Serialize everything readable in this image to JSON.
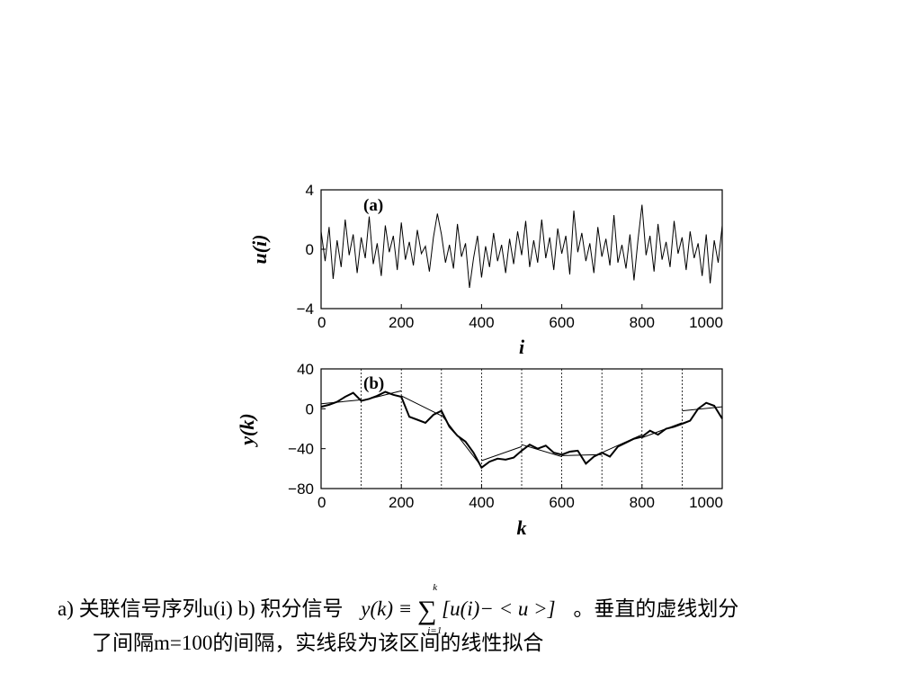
{
  "chart_data": [
    {
      "type": "line",
      "panel_label": "(a)",
      "xlabel": "i",
      "ylabel": "u(i)",
      "xlim": [
        0,
        1000
      ],
      "ylim": [
        -4,
        4
      ],
      "x_ticks": [
        0,
        200,
        400,
        600,
        800,
        1000
      ],
      "x_tick_labels": [
        "0",
        "200",
        "400",
        "600",
        "800",
        "1000"
      ],
      "y_ticks": [
        4,
        0,
        -4
      ],
      "y_tick_labels": [
        "4",
        "0",
        "−4"
      ],
      "series": [
        {
          "x": [
            0,
            10,
            20,
            30,
            40,
            50,
            60,
            70,
            80,
            90,
            100,
            110,
            120,
            130,
            140,
            150,
            160,
            170,
            180,
            190,
            200,
            210,
            220,
            230,
            240,
            250,
            260,
            270,
            280,
            290,
            300,
            310,
            320,
            330,
            340,
            350,
            360,
            370,
            380,
            390,
            400,
            410,
            420,
            430,
            440,
            450,
            460,
            470,
            480,
            490,
            500,
            510,
            520,
            530,
            540,
            550,
            560,
            570,
            580,
            590,
            600,
            610,
            620,
            630,
            640,
            650,
            660,
            670,
            680,
            690,
            700,
            710,
            720,
            730,
            740,
            750,
            760,
            770,
            780,
            790,
            800,
            810,
            820,
            830,
            840,
            850,
            860,
            870,
            880,
            890,
            900,
            910,
            920,
            930,
            940,
            950,
            960,
            970,
            980,
            990,
            1000
          ],
          "values": [
            1.2,
            -0.8,
            1.5,
            -2.0,
            0.6,
            -1.2,
            2.0,
            -0.4,
            1.0,
            -1.6,
            0.8,
            -0.6,
            2.2,
            -1.0,
            0.4,
            -1.8,
            1.6,
            -0.2,
            0.9,
            -1.4,
            1.8,
            -0.7,
            0.5,
            -1.1,
            1.3,
            -0.3,
            0.2,
            -1.5,
            0.8,
            2.4,
            1.0,
            -0.9,
            0.3,
            -1.3,
            1.7,
            -0.5,
            0.4,
            -2.6,
            -0.6,
            0.9,
            -1.9,
            0.2,
            -1.2,
            1.1,
            -0.8,
            0.3,
            -1.6,
            0.7,
            -1.0,
            1.2,
            -0.4,
            1.9,
            -1.2,
            0.6,
            -0.9,
            2.0,
            -0.6,
            0.8,
            -1.4,
            1.4,
            -0.3,
            0.9,
            -1.7,
            2.6,
            -0.2,
            1.1,
            -0.8,
            0.4,
            -1.6,
            1.5,
            -0.5,
            0.7,
            -1.1,
            2.3,
            -0.9,
            0.3,
            -1.3,
            1.0,
            -2.1,
            0.6,
            3.0,
            -0.4,
            0.9,
            -1.5,
            1.7,
            -0.7,
            0.5,
            -1.2,
            1.9,
            -0.3,
            0.8,
            -1.4,
            1.2,
            -0.6,
            0.4,
            -1.8,
            1.0,
            -2.3,
            0.6,
            -0.9,
            1.6
          ]
        }
      ]
    },
    {
      "type": "line",
      "panel_label": "(b)",
      "xlabel": "k",
      "ylabel": "y(k)",
      "xlim": [
        0,
        1000
      ],
      "ylim": [
        -80,
        40
      ],
      "x_ticks": [
        0,
        200,
        400,
        600,
        800,
        1000
      ],
      "x_tick_labels": [
        "0",
        "200",
        "400",
        "600",
        "800",
        "1000"
      ],
      "y_ticks": [
        40,
        0,
        -40,
        -80
      ],
      "y_tick_labels": [
        "40",
        "0",
        "−40",
        "−80"
      ],
      "vertical_dashed_x": [
        100,
        200,
        300,
        400,
        500,
        600,
        700,
        800,
        900
      ],
      "series": [
        {
          "x": [
            0,
            20,
            40,
            60,
            80,
            100,
            120,
            140,
            160,
            180,
            200,
            220,
            240,
            260,
            280,
            300,
            320,
            340,
            360,
            380,
            400,
            420,
            440,
            460,
            480,
            500,
            520,
            540,
            560,
            580,
            600,
            620,
            640,
            660,
            680,
            700,
            720,
            740,
            760,
            780,
            800,
            820,
            840,
            860,
            880,
            900,
            920,
            940,
            960,
            980,
            1000
          ],
          "values": [
            2,
            4,
            7,
            12,
            16,
            8,
            10,
            13,
            17,
            14,
            12,
            -8,
            -11,
            -14,
            -6,
            -2,
            -18,
            -27,
            -33,
            -44,
            -59,
            -53,
            -50,
            -51,
            -49,
            -42,
            -36,
            -40,
            -37,
            -44,
            -46,
            -43,
            -42,
            -55,
            -48,
            -44,
            -48,
            -38,
            -34,
            -30,
            -28,
            -22,
            -26,
            -20,
            -18,
            -15,
            -12,
            0,
            6,
            3,
            -10
          ]
        },
        {
          "x": [
            0,
            100,
            100,
            200,
            200,
            300,
            300,
            400,
            400,
            500,
            500,
            600,
            600,
            700,
            700,
            800,
            800,
            900,
            900,
            1000
          ],
          "values": [
            5,
            9,
            8,
            18,
            13,
            -7,
            -6,
            -58,
            -52,
            -38,
            -36,
            -48,
            -47,
            -46,
            -44,
            -26,
            -29,
            -14,
            -2,
            2
          ]
        }
      ]
    }
  ],
  "caption": {
    "line1_prefix": "a)  关联信号序列u(i) b) 积分信号",
    "formula_lhs": "y(k) ≡",
    "formula_sigma": "∑",
    "formula_upper": "k",
    "formula_lower": "i=1",
    "formula_rhs": "[u(i)− < u >]",
    "line1_suffix": "。垂直的虚线划分",
    "line2": "了间隔m=100的间隔，实线段为该区间的线性拟合"
  }
}
